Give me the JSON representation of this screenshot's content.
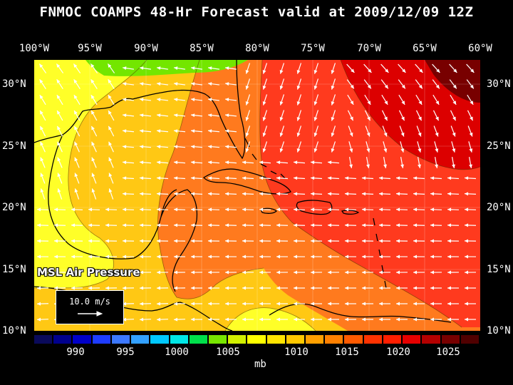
{
  "title": "FNMOC COAMPS 48-Hr Forecast valid at 2009/12/09 12Z",
  "lon_labels": [
    "100°W",
    "95°W",
    "90°W",
    "85°W",
    "80°W",
    "75°W",
    "70°W",
    "65°W",
    "60°W"
  ],
  "lat_labels": [
    "30°N",
    "25°N",
    "20°N",
    "15°N",
    "10°N"
  ],
  "field_label": "MSL Air Pressure",
  "vector_reference": "10.0 m/s",
  "colorbar": {
    "labels": [
      "990",
      "995",
      "1000",
      "1005",
      "1010",
      "1015",
      "1020",
      "1025"
    ],
    "units": "mb",
    "colors": [
      "#0a0a5a",
      "#00008c",
      "#0000c8",
      "#1e3cff",
      "#3c78ff",
      "#32a0ff",
      "#00c8ff",
      "#00e6e6",
      "#00e04b",
      "#78e600",
      "#d2f000",
      "#ffff00",
      "#ffe400",
      "#ffc800",
      "#ffa000",
      "#ff8000",
      "#ff5a00",
      "#ff3200",
      "#ff1e00",
      "#e60000",
      "#b40000",
      "#780000",
      "#500000"
    ]
  },
  "map": {
    "lon_range": [
      -100,
      -60
    ],
    "lat_range": [
      10,
      32
    ],
    "pressure_regions": [
      {
        "level": "1007",
        "color": "#73e600"
      },
      {
        "level": "1009",
        "color": "#ffff28"
      },
      {
        "level": "1012",
        "color": "#ffc814"
      },
      {
        "level": "1014",
        "color": "#ff7a1e"
      },
      {
        "level": "1017",
        "color": "#ff3a1e"
      },
      {
        "level": "1021",
        "color": "#dc0000"
      },
      {
        "level": "1024",
        "color": "#780000"
      }
    ]
  }
}
